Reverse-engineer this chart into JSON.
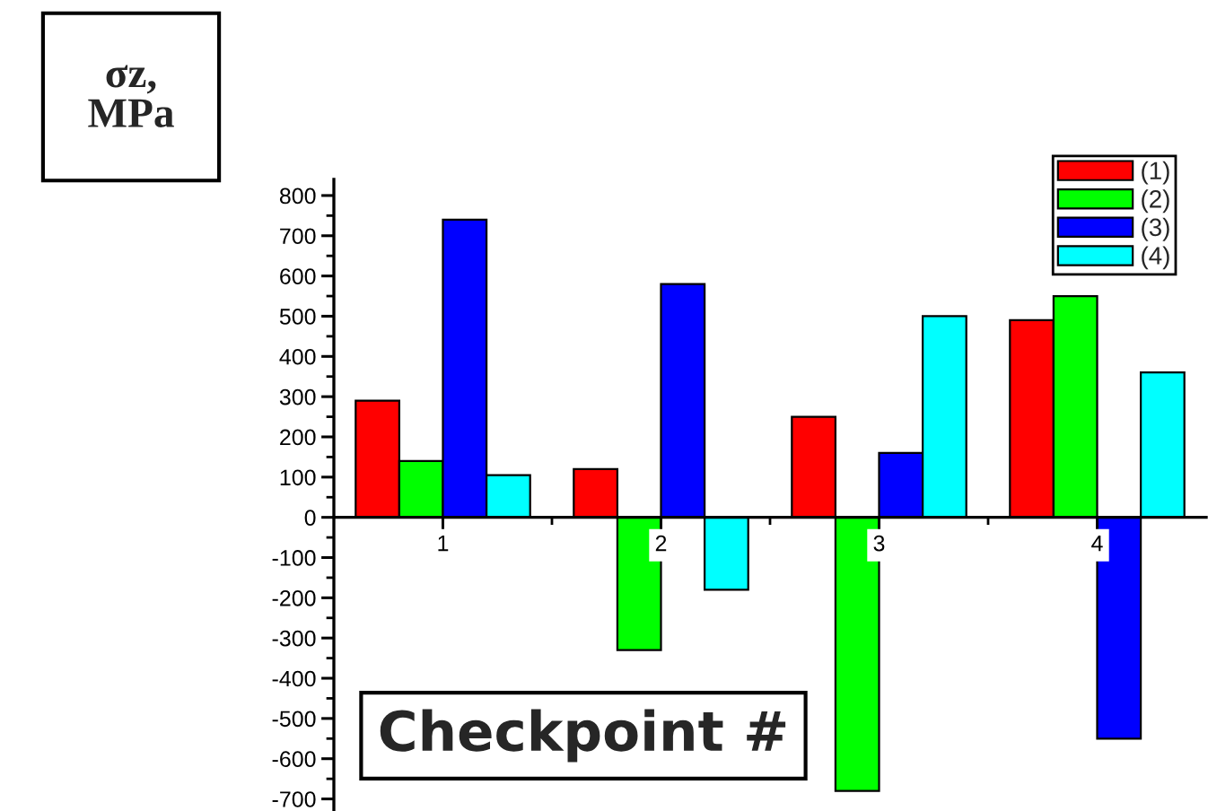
{
  "chart_data": {
    "type": "bar",
    "xlabel": "Checkpoint #",
    "ylabel": "σz, MPa",
    "categories": [
      "1",
      "2",
      "3",
      "4"
    ],
    "series": [
      {
        "name": "(1)",
        "color": "#ff0000",
        "values": [
          290,
          120,
          250,
          490
        ]
      },
      {
        "name": "(2)",
        "color": "#00ff00",
        "values": [
          140,
          -330,
          -680,
          550
        ]
      },
      {
        "name": "(3)",
        "color": "#0000ff",
        "values": [
          740,
          580,
          160,
          -550
        ]
      },
      {
        "name": "(4)",
        "color": "#00ffff",
        "values": [
          105,
          -180,
          500,
          360
        ]
      }
    ],
    "ylim": [
      -730,
      840
    ],
    "yticks": [
      -700,
      -600,
      -500,
      -400,
      -300,
      -200,
      -100,
      0,
      100,
      200,
      300,
      400,
      500,
      600,
      700,
      800
    ],
    "legend": "top right",
    "grid": false
  }
}
